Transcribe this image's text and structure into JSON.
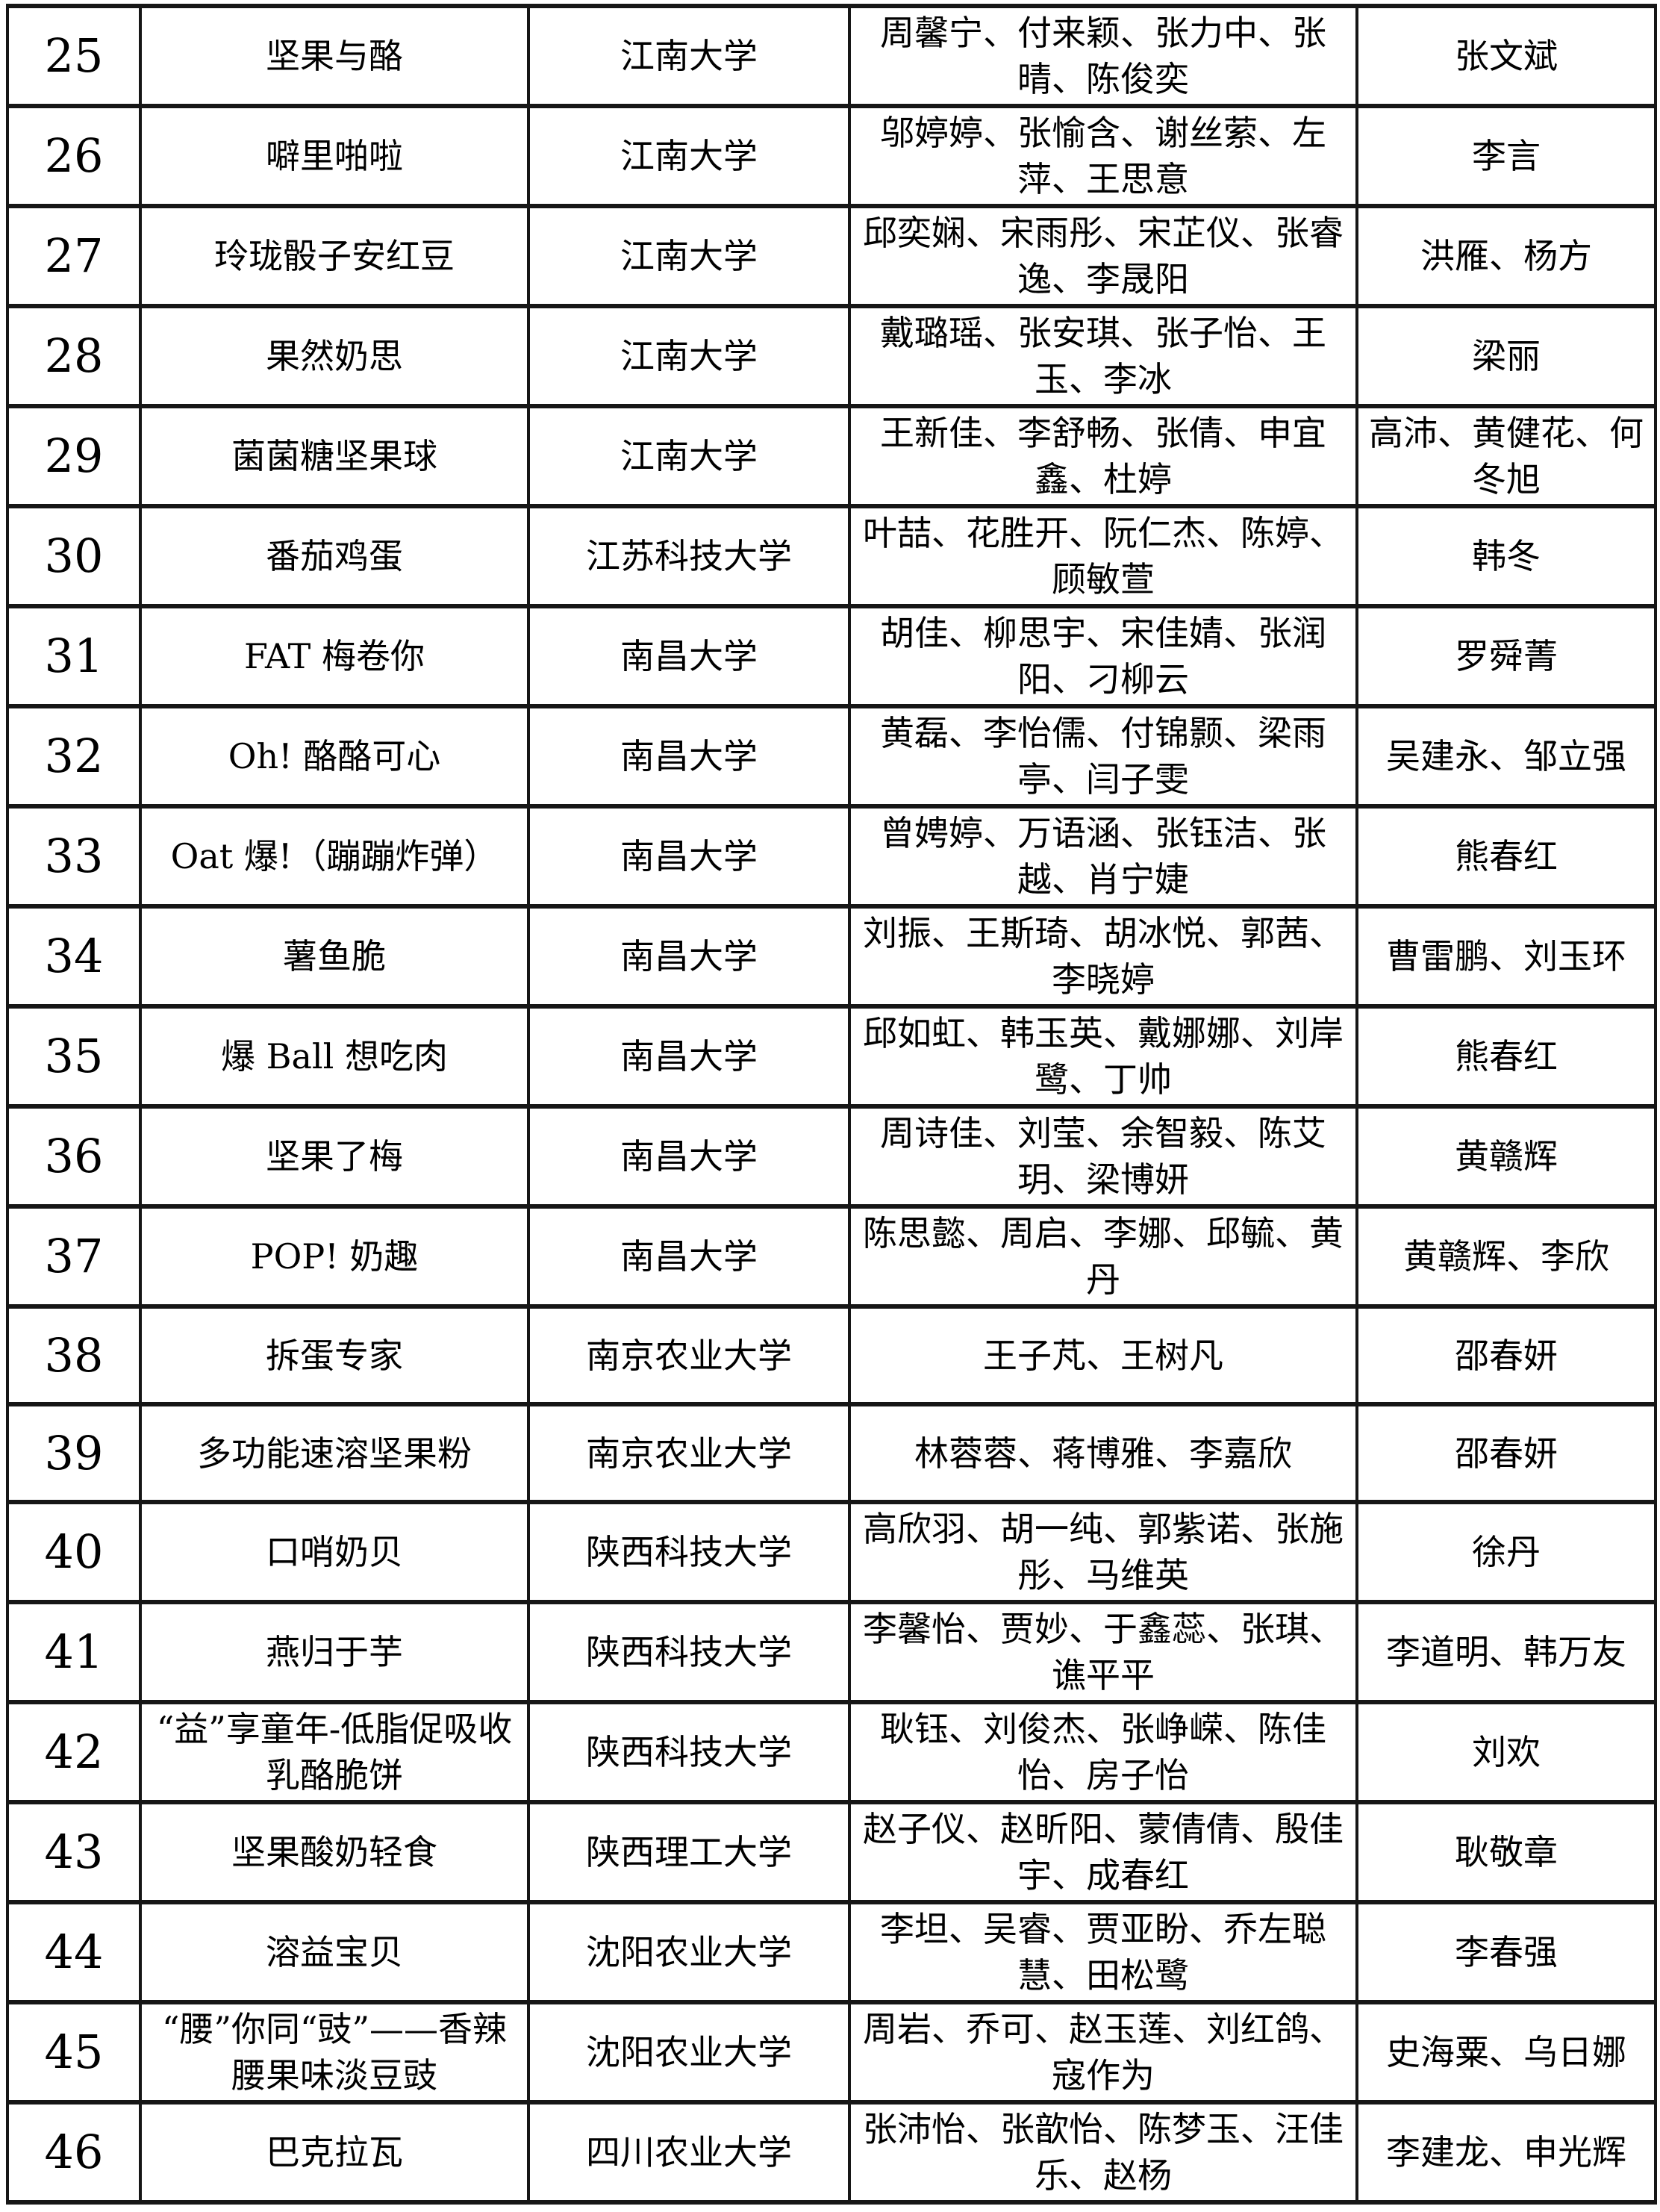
{
  "table": {
    "rows": [
      {
        "no": "25",
        "name": "坚果与酪",
        "university": "江南大学",
        "members": "周馨宁、付来颖、张力中、张晴、陈俊奕",
        "advisors": "张文斌"
      },
      {
        "no": "26",
        "name": "噼里啪啦",
        "university": "江南大学",
        "members": "邬婷婷、张愉含、谢丝萦、左萍、王思意",
        "advisors": "李言"
      },
      {
        "no": "27",
        "name": "玲珑骰子安红豆",
        "university": "江南大学",
        "members": "邱奕娴、宋雨彤、宋芷仪、张睿逸、李晟阳",
        "advisors": "洪雁、杨方"
      },
      {
        "no": "28",
        "name": "果然奶思",
        "university": "江南大学",
        "members": "戴璐瑶、张安琪、张子怡、王玉、李冰",
        "advisors": "梁丽"
      },
      {
        "no": "29",
        "name": "菌菌糖坚果球",
        "university": "江南大学",
        "members": "王新佳、李舒畅、张倩、申宜鑫、杜婷",
        "advisors": "高沛、黄健花、何冬旭"
      },
      {
        "no": "30",
        "name": "番茄鸡蛋",
        "university": "江苏科技大学",
        "members": "叶喆、花胜开、阮仁杰、陈婷、顾敏萱",
        "advisors": "韩冬"
      },
      {
        "no": "31",
        "name": "FAT 梅卷你",
        "university": "南昌大学",
        "members": "胡佳、柳思宇、宋佳婧、张润阳、刁柳云",
        "advisors": "罗舜菁"
      },
      {
        "no": "32",
        "name": "Oh! 酪酪可心",
        "university": "南昌大学",
        "members": "黄磊、李怡儒、付锦颢、梁雨亭、闫子雯",
        "advisors": "吴建永、邹立强"
      },
      {
        "no": "33",
        "name": "Oat 爆!（蹦蹦炸弹）",
        "university": "南昌大学",
        "members": "曾娉婷、万语涵、张钰洁、张越、肖宁婕",
        "advisors": "熊春红"
      },
      {
        "no": "34",
        "name": "薯鱼脆",
        "university": "南昌大学",
        "members": "刘振、王斯琦、胡冰悦、郭茜、李晓婷",
        "advisors": "曹雷鹏、刘玉环"
      },
      {
        "no": "35",
        "name": "爆 Ball 想吃肉",
        "university": "南昌大学",
        "members": "邱如虹、韩玉英、戴娜娜、刘岸鹭、丁帅",
        "advisors": "熊春红"
      },
      {
        "no": "36",
        "name": "坚果了梅",
        "university": "南昌大学",
        "members": "周诗佳、刘莹、余智毅、陈艾玥、梁博妍",
        "advisors": "黄赣辉"
      },
      {
        "no": "37",
        "name": "POP! 奶趣",
        "university": "南昌大学",
        "members": "陈思懿、周启、李娜、邱毓、黄丹",
        "advisors": "黄赣辉、李欣"
      },
      {
        "no": "38",
        "name": "拆蛋专家",
        "university": "南京农业大学",
        "members": "王子芃、王树凡",
        "advisors": "邵春妍"
      },
      {
        "no": "39",
        "name": "多功能速溶坚果粉",
        "university": "南京农业大学",
        "members": "林蓉蓉、蒋博雅、李嘉欣",
        "advisors": "邵春妍"
      },
      {
        "no": "40",
        "name": "口哨奶贝",
        "university": "陕西科技大学",
        "members": "高欣羽、胡一纯、郭紫诺、张施彤、马维英",
        "advisors": "徐丹"
      },
      {
        "no": "41",
        "name": "燕归于芋",
        "university": "陕西科技大学",
        "members": "李馨怡、贾妙、于鑫蕊、张琪、谯平平",
        "advisors": "李道明、韩万友"
      },
      {
        "no": "42",
        "name": "“益”享童年-低脂促吸收乳酪脆饼",
        "university": "陕西科技大学",
        "members": "耿钰、刘俊杰、张峥嵘、陈佳怡、房子怡",
        "advisors": "刘欢"
      },
      {
        "no": "43",
        "name": "坚果酸奶轻食",
        "university": "陕西理工大学",
        "members": "赵子仪、赵昕阳、蒙倩倩、殷佳宇、成春红",
        "advisors": "耿敬章"
      },
      {
        "no": "44",
        "name": "溶益宝贝",
        "university": "沈阳农业大学",
        "members": "李坦、吴睿、贾亚盼、乔左聪慧、田松鹭",
        "advisors": "李春强"
      },
      {
        "no": "45",
        "name": "“腰”你同“豉”——香辣腰果味淡豆豉",
        "university": "沈阳农业大学",
        "members": "周岩、乔可、赵玉莲、刘红鸽、寇作为",
        "advisors": "史海粟、乌日娜"
      },
      {
        "no": "46",
        "name": "巴克拉瓦",
        "university": "四川农业大学",
        "members": "张沛怡、张歆怡、陈梦玉、汪佳乐、赵杨",
        "advisors": "李建龙、申光辉"
      }
    ]
  }
}
